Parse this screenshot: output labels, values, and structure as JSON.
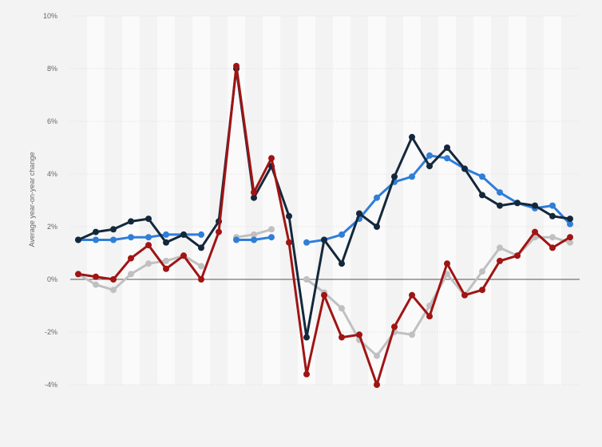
{
  "chart_data": {
    "type": "line",
    "title": "",
    "xlabel": "",
    "ylabel": "Average year-on-year change",
    "ylim": [
      -4,
      10
    ],
    "y_ticks": [
      {
        "value": 10,
        "label": "10%"
      },
      {
        "value": 8,
        "label": "8%"
      },
      {
        "value": 6,
        "label": "6%"
      },
      {
        "value": 4,
        "label": "4%"
      },
      {
        "value": 2,
        "label": "2%"
      },
      {
        "value": 0,
        "label": "0%"
      },
      {
        "value": -2,
        "label": "-2%"
      },
      {
        "value": -4,
        "label": "-4%"
      }
    ],
    "grid": true,
    "legend": "none",
    "x_count": 29,
    "series": [
      {
        "color": "#c0c0c0",
        "values": [
          0.2,
          -0.2,
          -0.4,
          0.2,
          0.6,
          0.7,
          0.9,
          0.5,
          null,
          1.6,
          1.7,
          1.9,
          null,
          0.0,
          -0.5,
          -1.1,
          -2.3,
          -2.9,
          -2.0,
          -2.1,
          -1.0,
          0.2,
          -0.6,
          0.3,
          1.2,
          0.9,
          1.6,
          1.6,
          1.4
        ]
      },
      {
        "color": "#2f7ed8",
        "values": [
          1.5,
          1.5,
          1.5,
          1.6,
          1.6,
          1.7,
          1.7,
          1.7,
          null,
          1.5,
          1.5,
          1.6,
          null,
          1.4,
          1.5,
          1.7,
          2.3,
          3.1,
          3.7,
          3.9,
          4.7,
          4.6,
          4.2,
          3.9,
          3.3,
          2.9,
          2.7,
          2.8,
          2.1
        ]
      },
      {
        "color": "#14283c",
        "values": [
          1.5,
          1.8,
          1.9,
          2.2,
          2.3,
          1.4,
          1.7,
          1.2,
          2.2,
          8.0,
          3.1,
          4.3,
          2.4,
          -2.2,
          1.5,
          0.6,
          2.5,
          2.0,
          3.9,
          5.4,
          4.3,
          5.0,
          4.2,
          3.2,
          2.8,
          2.9,
          2.8,
          2.4,
          2.3
        ]
      },
      {
        "color": "#a01414",
        "values": [
          0.2,
          0.1,
          0.0,
          0.8,
          1.3,
          0.4,
          0.9,
          0.0,
          1.8,
          8.1,
          3.3,
          4.6,
          1.4,
          -3.6,
          -0.6,
          -2.2,
          -2.1,
          -4.0,
          -1.8,
          -0.6,
          -1.4,
          0.6,
          -0.6,
          -0.4,
          0.7,
          0.9,
          1.8,
          1.2,
          1.6
        ]
      }
    ]
  }
}
